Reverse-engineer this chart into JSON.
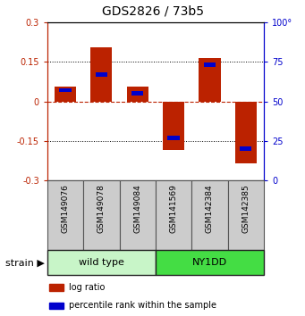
{
  "title": "GDS2826 / 73b5",
  "samples": [
    "GSM149076",
    "GSM149078",
    "GSM149084",
    "GSM141569",
    "GSM142384",
    "GSM142385"
  ],
  "log_ratios": [
    0.055,
    0.205,
    0.055,
    -0.185,
    0.163,
    -0.235
  ],
  "percentile_ranks": [
    57,
    67,
    55,
    27,
    73,
    20
  ],
  "groups": [
    {
      "label": "wild type",
      "indices": [
        0,
        1,
        2
      ],
      "color": "#c8f5c8"
    },
    {
      "label": "NY1DD",
      "indices": [
        3,
        4,
        5
      ],
      "color": "#44dd44"
    }
  ],
  "ylim": [
    -0.3,
    0.3
  ],
  "yticks_left": [
    -0.3,
    -0.15,
    0,
    0.15,
    0.3
  ],
  "yticks_right": [
    0,
    25,
    50,
    75,
    100
  ],
  "bar_color_red": "#bb2200",
  "bar_color_blue": "#0000cc",
  "bar_width": 0.6,
  "strain_label": "strain",
  "legend_red": "log ratio",
  "legend_blue": "percentile rank within the sample",
  "title_fontsize": 10,
  "tick_label_fontsize": 7,
  "sample_fontsize": 6.5,
  "legend_fontsize": 7,
  "strain_fontsize": 8,
  "group_fontsize": 8
}
